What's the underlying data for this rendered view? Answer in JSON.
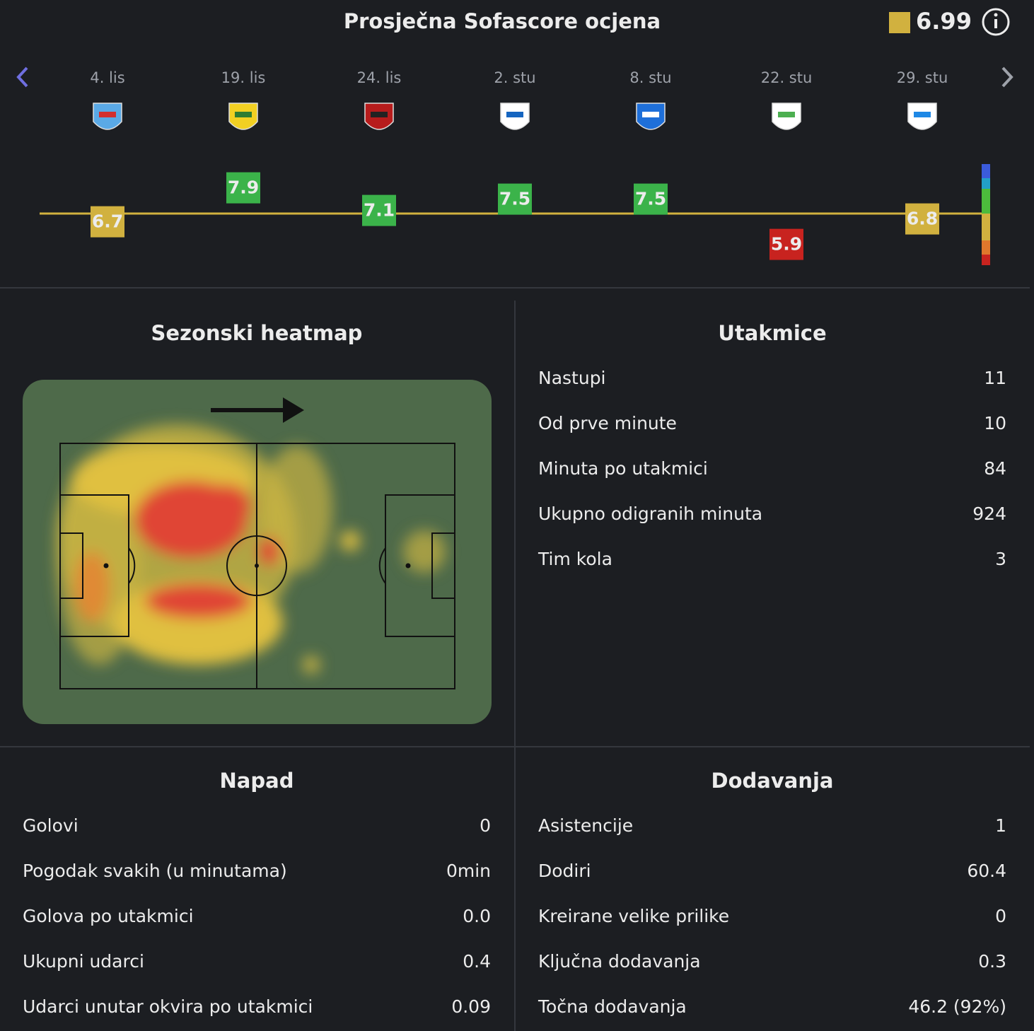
{
  "header": {
    "title": "Prosječna Sofascore ocjena",
    "average": 6.99
  },
  "matches": [
    {
      "date": "4. lis",
      "rating": "6.7",
      "crest": [
        "#5aa9e6",
        "#d32f2f"
      ]
    },
    {
      "date": "19. lis",
      "rating": "7.9",
      "crest": [
        "#f2d022",
        "#2e7d32"
      ]
    },
    {
      "date": "24. lis",
      "rating": "7.1",
      "crest": [
        "#b71c1c",
        "#222222"
      ]
    },
    {
      "date": "2. stu",
      "rating": "7.5",
      "crest": [
        "#ffffff",
        "#1565c0"
      ]
    },
    {
      "date": "8. stu",
      "rating": "7.5",
      "crest": [
        "#1e6fd9",
        "#ffffff"
      ]
    },
    {
      "date": "22. stu",
      "rating": "5.9",
      "crest": [
        "#ffffff",
        "#4caf50"
      ]
    },
    {
      "date": "29. stu",
      "rating": "6.8",
      "crest": [
        "#ffffff",
        "#1e88e5"
      ]
    }
  ],
  "heatmap": {
    "title": "Sezonski heatmap"
  },
  "sections": [
    {
      "title": "Utakmice",
      "rows": [
        [
          "Nastupi",
          "11"
        ],
        [
          "Od prve minute",
          "10"
        ],
        [
          "Minuta po utakmici",
          "84"
        ],
        [
          "Ukupno odigranih minuta",
          "924"
        ],
        [
          "Tim kola",
          "3"
        ]
      ]
    },
    {
      "title": "Napad",
      "rows": [
        [
          "Golovi",
          "0"
        ],
        [
          "Pogodak svakih (u minutama)",
          "0min"
        ],
        [
          "Golova po utakmici",
          "0.0"
        ],
        [
          "Ukupni udarci",
          "0.4"
        ],
        [
          "Udarci unutar okvira po utakmici",
          "0.09"
        ]
      ]
    },
    {
      "title": "Dodavanja",
      "rows": [
        [
          "Asistencije",
          "1"
        ],
        [
          "Dodiri",
          "60.4"
        ],
        [
          "Kreirane velike prilike",
          "0"
        ],
        [
          "Ključna dodavanja",
          "0.3"
        ],
        [
          "Točna dodavanja",
          "46.2 (92%)"
        ]
      ]
    }
  ]
}
